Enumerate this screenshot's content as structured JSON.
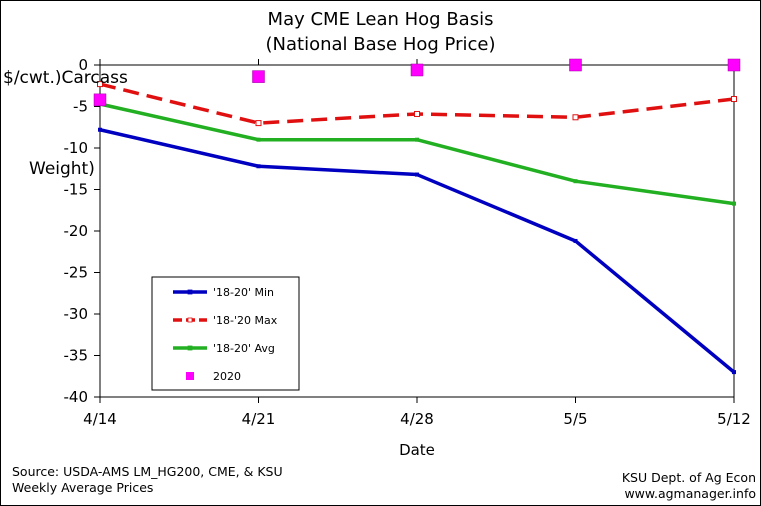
{
  "chart_data": {
    "type": "line",
    "title": "May CME Lean Hog Basis",
    "subtitle": "(National Base Hog Price)",
    "xlabel": "Date",
    "ylabel": "$/cwt. (Carcass Weight)",
    "ylabel_line1": "$/cwt.)Carcass",
    "ylabel_line2": "Weight)",
    "categories": [
      "4/14",
      "4/21",
      "4/28",
      "5/5",
      "5/12"
    ],
    "ylim": [
      -40,
      0
    ],
    "yticks": [
      0,
      -5,
      -10,
      -15,
      -20,
      -25,
      -30,
      -35,
      -40
    ],
    "grid": false,
    "legend_position": "bottom-left",
    "series": [
      {
        "name": "'18-20' Min",
        "values": [
          -7.8,
          -12.2,
          -13.2,
          -21.2,
          -37.0
        ],
        "color": "#0000c0",
        "style": "solid"
      },
      {
        "name": "'18-'20 Max",
        "values": [
          -2.3,
          -7.0,
          -5.9,
          -6.3,
          -4.1
        ],
        "color": "#e01010",
        "style": "dashed"
      },
      {
        "name": "'18-20' Avg",
        "values": [
          -4.7,
          -9.0,
          -9.0,
          -14.0,
          -16.7
        ],
        "color": "#22b022",
        "style": "solid"
      },
      {
        "name": "2020",
        "values": [
          -4.2,
          -1.4,
          -0.6,
          0.0,
          0.0
        ],
        "color": "#ff00ff",
        "style": "markers"
      }
    ]
  },
  "footer": {
    "source_line1": "Source:  USDA-AMS LM_HG200, CME, & KSU",
    "source_line2": "Weekly Average Prices",
    "credit_line1": "KSU Dept. of Ag Econ",
    "credit_line2": "www.agmanager.info"
  }
}
